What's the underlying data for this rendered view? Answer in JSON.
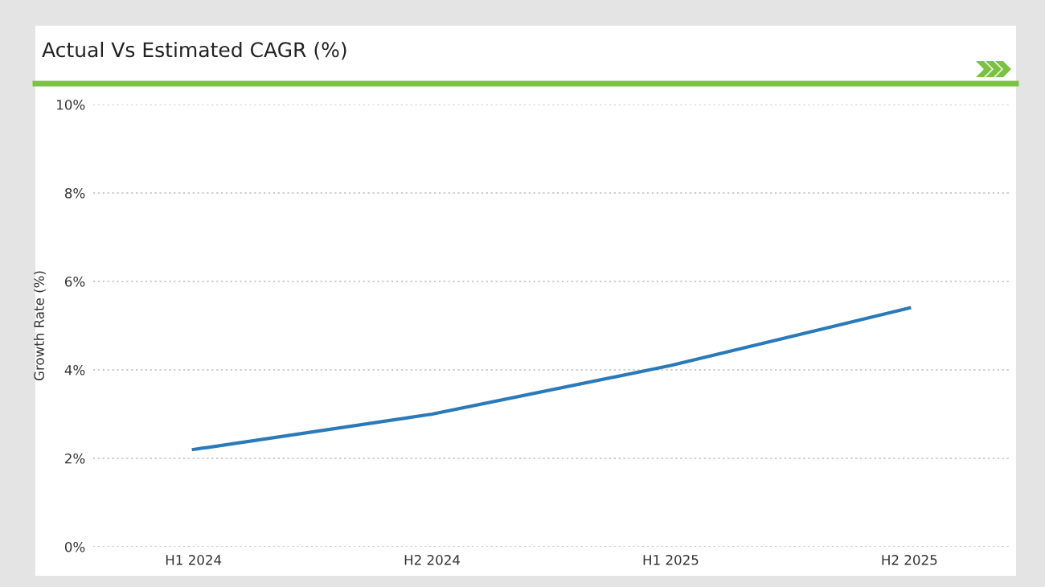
{
  "chart_data": {
    "type": "line",
    "title": "Actual Vs Estimated CAGR (%)",
    "ylabel": "Growth Rate (%)",
    "categories": [
      "H1 2024",
      "H2 2024",
      "H1 2025",
      "H2 2025"
    ],
    "series": [
      {
        "color": "#2a7ab9",
        "values": [
          2.2,
          3.0,
          4.1,
          5.4
        ]
      }
    ],
    "ylim": [
      0,
      10
    ],
    "yticks": [
      {
        "value": 0,
        "label": "0%"
      },
      {
        "value": 2,
        "label": "2%"
      },
      {
        "value": 4,
        "label": "4%"
      },
      {
        "value": 6,
        "label": "6%"
      },
      {
        "value": 8,
        "label": "8%"
      },
      {
        "value": 10,
        "label": "10%"
      }
    ],
    "grid": "y",
    "legend": false,
    "marker": "none",
    "line_style": "solid"
  }
}
